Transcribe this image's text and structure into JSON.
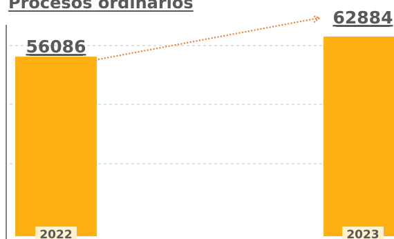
{
  "colors": {
    "bar": "#FFB114",
    "connector": "#ED7D31",
    "grid": "#D9D9D9",
    "axis": "#595959",
    "label": "#595959",
    "year_badge": "#FFF2CC"
  },
  "chart_data": {
    "type": "bar",
    "title": "Procesos ordinarios",
    "categories": [
      "2022",
      "2023"
    ],
    "values": [
      56086,
      62884
    ],
    "value_labels": [
      "56086",
      "62884"
    ],
    "xlabel": "",
    "ylabel": "",
    "grid": true,
    "connector": "dotted-arrow"
  }
}
